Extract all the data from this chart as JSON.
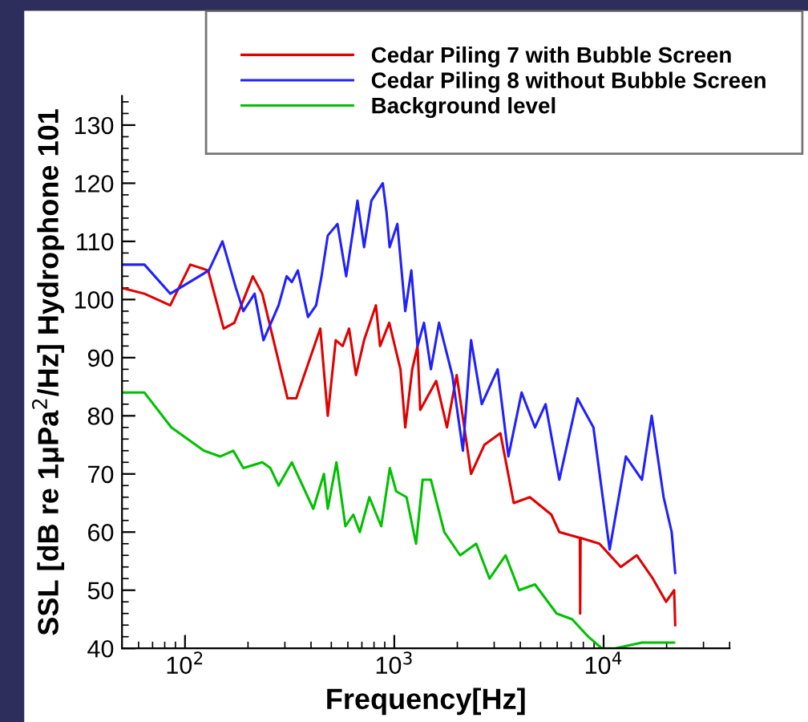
{
  "chart_data": {
    "type": "line",
    "xlabel": "Frequency[Hz]",
    "ylabel": "SSL [dB re 1μPa$^{2}$/Hz] Hydrophone 101",
    "log": "x",
    "xlim": [
      50,
      40000
    ],
    "xticks": [
      {
        "value": 100,
        "label": "10$^{2}$"
      },
      {
        "value": 1000,
        "label": "10$^{3}$"
      },
      {
        "value": 10000,
        "label": "10$^{4}$"
      }
    ],
    "ylim": [
      40,
      135
    ],
    "yticks": [
      40,
      50,
      60,
      70,
      80,
      90,
      100,
      110,
      120,
      130
    ],
    "grid": false,
    "legend": "top right",
    "marker": "none",
    "line_style": "solid",
    "series": [
      {
        "name": "Cedar Piling 7 with Bubble Screen",
        "color": "#e00000",
        "x": [
          50,
          64,
          85,
          106,
          129,
          153,
          172,
          211,
          234,
          309,
          340,
          443,
          481,
          525,
          567,
          608,
          656,
          717,
          817,
          855,
          946,
          1070,
          1128,
          1218,
          1291,
          1330,
          1585,
          1785,
          1986,
          2327,
          2693,
          3212,
          3721,
          4443,
          5626,
          6144,
          7700,
          7727,
          7762,
          9550,
          12080,
          14390,
          17180,
          19900,
          21730,
          21980
        ],
        "values": [
          102,
          101,
          99,
          106,
          105,
          95,
          96,
          104,
          101,
          83,
          83,
          95,
          80,
          93,
          92,
          95,
          87,
          93,
          99,
          92,
          96,
          88,
          78,
          88,
          92,
          81,
          86,
          78,
          87,
          70,
          75,
          77,
          65,
          66,
          63,
          60,
          59,
          46,
          59,
          58,
          54,
          56,
          52,
          48,
          50,
          44
        ]
      },
      {
        "name": "Cedar Piling 8 without Bubble Screen",
        "color": "#2020ff",
        "x": [
          50,
          64,
          85,
          130,
          151,
          175,
          190,
          215,
          237,
          280,
          306,
          324,
          346,
          387,
          423,
          449,
          481,
          535,
          589,
          667,
          717,
          777,
          881,
          918,
          950,
          1034,
          1128,
          1206,
          1291,
          1386,
          1496,
          1636,
          1892,
          2127,
          2327,
          2617,
          3117,
          3508,
          4057,
          4700,
          5280,
          6144,
          7500,
          8940,
          10690,
          12780,
          15250,
          16970,
          19350,
          21150,
          21980
        ],
        "values": [
          106,
          106,
          101,
          105,
          110,
          102,
          98,
          101,
          93,
          99,
          104,
          103,
          105,
          97,
          99,
          104,
          111,
          113,
          104,
          117,
          109,
          117,
          120,
          115,
          109,
          113,
          98,
          105,
          92,
          96,
          88,
          96,
          87,
          74,
          93,
          82,
          88,
          73,
          84,
          78,
          82,
          69,
          83,
          78,
          57,
          73,
          69,
          80,
          66,
          60,
          53
        ]
      },
      {
        "name": "Background level",
        "color": "#00c000",
        "x": [
          50,
          64,
          86,
          123,
          147,
          170,
          190,
          234,
          256,
          280,
          324,
          410,
          461,
          481,
          529,
          584,
          637,
          684,
          760,
          866,
          952,
          1021,
          1144,
          1270,
          1366,
          1496,
          1733,
          2063,
          2462,
          2851,
          3403,
          3943,
          4700,
          5960,
          7080,
          8450,
          9800,
          11350,
          15250,
          19350,
          21700
        ],
        "values": [
          84,
          84,
          78,
          74,
          73,
          74,
          71,
          72,
          71,
          68,
          72,
          64,
          70,
          64,
          72,
          61,
          63,
          60,
          66,
          61,
          71,
          67,
          66,
          58,
          69,
          69,
          60,
          56,
          58,
          52,
          56,
          50,
          51,
          46,
          45,
          42,
          40,
          40,
          41,
          41,
          41
        ]
      }
    ]
  }
}
